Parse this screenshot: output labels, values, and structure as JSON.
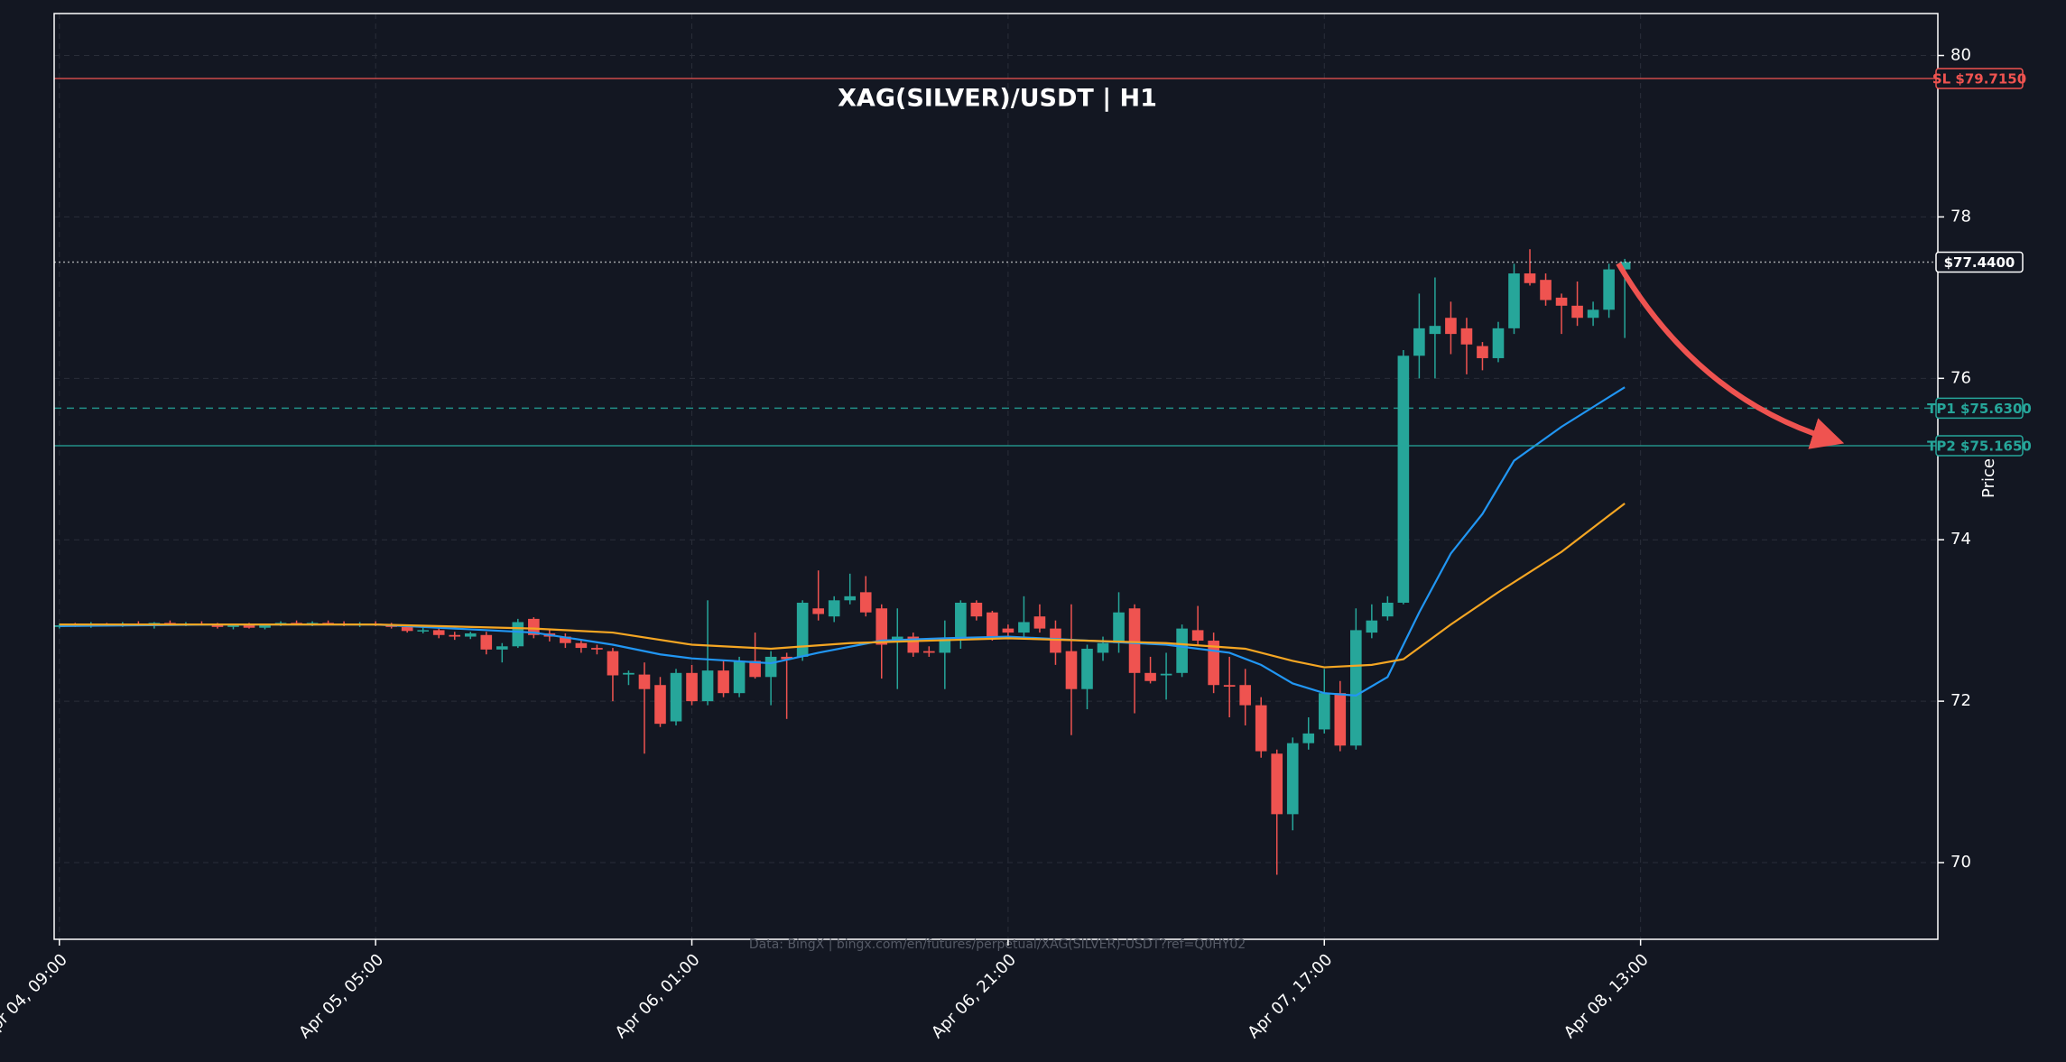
{
  "chart_data": {
    "type": "candlestick",
    "title": "XAG(SILVER)/USDT | H1",
    "y_label": "Price",
    "source": "Data: BingX | bingx.com/en/futures/perpetual/XAG(SILVER)-USDT?ref=Q0HY02",
    "up_color": "#26a69a",
    "down_color": "#ef5350",
    "x": [
      0,
      1,
      2,
      3,
      4,
      5,
      6,
      7,
      8,
      9,
      10,
      11,
      12,
      13,
      14,
      15,
      16,
      17,
      18,
      19,
      20,
      21,
      22,
      23,
      24,
      25,
      26,
      27,
      28,
      29,
      30,
      31,
      32,
      33,
      34,
      35,
      36,
      37,
      38,
      39,
      40,
      41,
      42,
      43,
      44,
      45,
      46,
      47,
      48,
      49,
      50,
      51,
      52,
      53,
      54,
      55,
      56,
      57,
      58,
      59,
      60,
      61,
      62,
      63,
      64,
      65,
      66,
      67,
      68,
      69,
      70,
      71,
      72,
      73,
      74,
      75,
      76,
      77,
      78,
      79,
      80,
      81,
      82,
      83,
      84,
      85,
      86,
      87,
      88,
      89,
      90,
      91,
      92,
      93,
      94,
      95,
      96,
      97,
      98,
      99
    ],
    "open": [
      72.92,
      72.94,
      72.93,
      72.95,
      72.94,
      72.96,
      72.94,
      72.97,
      72.95,
      72.96,
      72.95,
      72.92,
      72.94,
      72.91,
      72.95,
      72.97,
      72.95,
      72.97,
      72.96,
      72.95,
      72.96,
      72.94,
      72.92,
      72.87,
      72.88,
      72.82,
      72.8,
      72.82,
      72.64,
      72.68,
      73.02,
      72.84,
      72.8,
      72.72,
      72.66,
      72.62,
      72.33,
      72.33,
      72.2,
      71.75,
      72.35,
      72.0,
      72.38,
      72.1,
      72.5,
      72.3,
      72.55,
      72.55,
      73.15,
      73.05,
      73.25,
      73.35,
      73.15,
      72.75,
      72.8,
      72.62,
      72.6,
      72.78,
      73.22,
      73.1,
      72.9,
      72.85,
      73.05,
      72.9,
      72.62,
      72.15,
      72.6,
      72.72,
      73.15,
      72.35,
      72.32,
      72.35,
      72.88,
      72.75,
      72.2,
      72.2,
      71.95,
      71.35,
      70.6,
      71.48,
      71.65,
      72.1,
      71.45,
      72.85,
      73.05,
      73.22,
      76.28,
      76.55,
      76.75,
      76.62,
      76.4,
      76.25,
      76.62,
      77.3,
      77.22,
      77.0,
      76.9,
      76.75,
      76.85,
      77.35
    ],
    "high": [
      72.96,
      72.97,
      72.98,
      72.97,
      72.98,
      72.99,
      72.98,
      73.0,
      72.98,
      72.99,
      72.97,
      72.96,
      72.97,
      72.96,
      72.99,
      73.0,
      72.99,
      73.0,
      72.99,
      72.98,
      72.99,
      72.97,
      72.95,
      72.92,
      72.9,
      72.86,
      72.86,
      72.86,
      72.72,
      73.02,
      73.04,
      72.88,
      72.84,
      72.76,
      72.7,
      72.66,
      72.38,
      72.48,
      72.3,
      72.4,
      72.45,
      73.25,
      72.5,
      72.55,
      72.85,
      72.62,
      72.6,
      73.25,
      73.62,
      73.3,
      73.58,
      73.55,
      73.2,
      73.15,
      72.85,
      72.68,
      73.0,
      73.25,
      73.25,
      73.12,
      72.95,
      73.3,
      73.2,
      73.0,
      73.2,
      72.7,
      72.8,
      73.35,
      73.2,
      72.55,
      72.6,
      72.95,
      73.18,
      72.85,
      72.55,
      72.4,
      72.05,
      71.4,
      71.55,
      71.8,
      72.4,
      72.25,
      73.15,
      73.2,
      73.3,
      76.35,
      77.05,
      77.25,
      76.95,
      76.75,
      76.45,
      76.7,
      77.42,
      77.6,
      77.3,
      77.05,
      77.2,
      76.95,
      77.42,
      77.48
    ],
    "low": [
      72.9,
      72.92,
      72.91,
      72.93,
      72.92,
      72.93,
      72.9,
      72.94,
      72.93,
      72.94,
      72.9,
      72.89,
      72.9,
      72.89,
      72.93,
      72.94,
      72.93,
      72.94,
      72.93,
      72.92,
      72.93,
      72.9,
      72.85,
      72.84,
      72.78,
      72.76,
      72.77,
      72.58,
      72.48,
      72.66,
      72.78,
      72.74,
      72.66,
      72.6,
      72.58,
      72.0,
      72.2,
      71.35,
      71.68,
      71.7,
      71.95,
      71.95,
      72.05,
      72.05,
      72.28,
      71.95,
      71.78,
      72.5,
      73.0,
      72.98,
      73.2,
      73.05,
      72.28,
      72.15,
      72.55,
      72.55,
      72.15,
      72.65,
      73.0,
      72.75,
      72.8,
      72.8,
      72.85,
      72.45,
      71.58,
      71.9,
      72.5,
      72.6,
      71.85,
      72.22,
      72.02,
      72.3,
      72.7,
      72.1,
      71.8,
      71.7,
      71.3,
      69.85,
      70.4,
      71.4,
      71.6,
      71.38,
      71.4,
      72.78,
      73.0,
      73.2,
      76.0,
      76.0,
      76.3,
      76.05,
      76.1,
      76.2,
      76.55,
      77.15,
      76.9,
      76.55,
      76.65,
      76.65,
      76.75,
      76.5
    ],
    "close": [
      72.94,
      72.93,
      72.95,
      72.94,
      72.96,
      72.94,
      72.97,
      72.95,
      72.96,
      72.95,
      72.92,
      72.94,
      72.91,
      72.95,
      72.97,
      72.95,
      72.97,
      72.96,
      72.95,
      72.96,
      72.94,
      72.92,
      72.87,
      72.88,
      72.82,
      72.8,
      72.84,
      72.64,
      72.68,
      72.98,
      72.82,
      72.8,
      72.72,
      72.66,
      72.64,
      72.32,
      72.35,
      72.15,
      71.72,
      72.35,
      72.0,
      72.38,
      72.1,
      72.5,
      72.3,
      72.55,
      72.52,
      73.22,
      73.08,
      73.25,
      73.3,
      73.1,
      72.7,
      72.8,
      72.6,
      72.6,
      72.78,
      73.22,
      73.05,
      72.8,
      72.85,
      72.98,
      72.9,
      72.6,
      72.15,
      72.65,
      72.72,
      73.1,
      72.35,
      72.25,
      72.34,
      72.9,
      72.75,
      72.2,
      72.18,
      71.95,
      71.38,
      70.6,
      71.48,
      71.6,
      72.1,
      71.45,
      72.88,
      73.0,
      73.22,
      76.28,
      76.62,
      76.65,
      76.55,
      76.42,
      76.25,
      76.62,
      77.3,
      77.18,
      76.97,
      76.9,
      76.75,
      76.85,
      77.35,
      77.44
    ],
    "lines": [
      {
        "color": "#2196f3",
        "x": [
          0,
          10,
          20,
          25,
          30,
          35,
          38,
          40,
          45,
          48,
          52,
          56,
          60,
          65,
          70,
          74,
          76,
          78,
          80,
          82,
          84,
          86,
          88,
          90,
          92,
          95,
          99
        ],
        "values": [
          72.93,
          72.95,
          72.95,
          72.9,
          72.85,
          72.7,
          72.58,
          72.53,
          72.47,
          72.6,
          72.75,
          72.78,
          72.8,
          72.75,
          72.7,
          72.6,
          72.45,
          72.22,
          72.1,
          72.07,
          72.3,
          73.1,
          73.83,
          74.32,
          74.98,
          75.4,
          75.89
        ]
      },
      {
        "color": "#f5a623",
        "x": [
          0,
          20,
          30,
          35,
          40,
          45,
          50,
          60,
          70,
          75,
          78,
          80,
          83,
          85,
          88,
          91,
          95,
          99
        ],
        "values": [
          72.95,
          72.95,
          72.9,
          72.85,
          72.7,
          72.65,
          72.72,
          72.78,
          72.72,
          72.65,
          72.5,
          72.42,
          72.45,
          72.52,
          72.95,
          73.35,
          73.85,
          74.45
        ]
      }
    ],
    "levels": [
      {
        "value": 79.715,
        "label": "SL $79.7150",
        "color": "#ef5350",
        "style": "solid"
      },
      {
        "value": 77.44,
        "label": "$77.4400",
        "color": "#ffffff",
        "style": "dotted"
      },
      {
        "value": 75.63,
        "label": "TP1 $75.6300",
        "color": "#26a69a",
        "style": "dashed"
      },
      {
        "value": 75.165,
        "label": "TP2 $75.1650",
        "color": "#26a69a",
        "style": "solid"
      }
    ],
    "xlim": [
      -0.33,
      118.8
    ],
    "ylim": [
      69.05,
      80.52
    ],
    "xticks": [
      {
        "value": 0,
        "label": "Apr 04, 09:00"
      },
      {
        "value": 20,
        "label": "Apr 05, 05:00"
      },
      {
        "value": 40,
        "label": "Apr 06, 01:00"
      },
      {
        "value": 60,
        "label": "Apr 06, 21:00"
      },
      {
        "value": 80,
        "label": "Apr 07, 17:00"
      },
      {
        "value": 100,
        "label": "Apr 08, 13:00"
      }
    ],
    "yticks": [
      70,
      72,
      74,
      76,
      78,
      80
    ],
    "grid": true
  }
}
